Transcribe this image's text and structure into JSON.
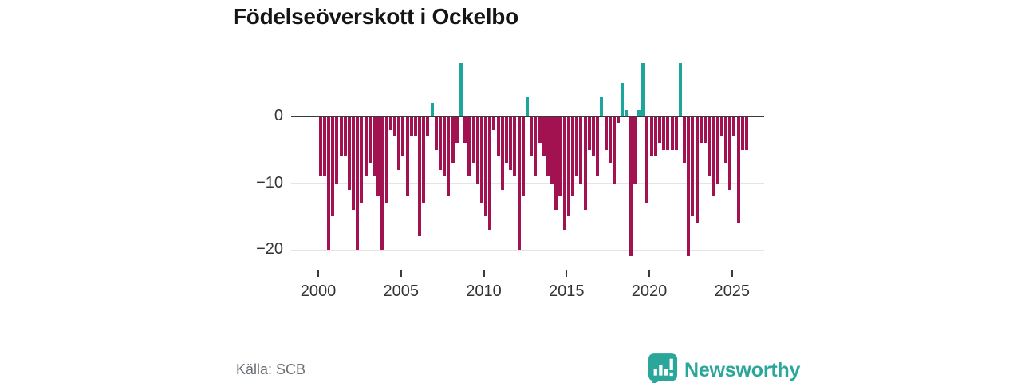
{
  "title": "Födelseöverskott i Ockelbo",
  "source": "Källa: SCB",
  "brand": {
    "name": "Newsworthy",
    "color": "#2aa69b",
    "logo_icon": "speech-bubble-bar-chart"
  },
  "colors": {
    "negative_bar": "#a21250",
    "positive_bar": "#1ba59c",
    "axis_line": "#3a3a3a",
    "gridline": "#e4e4e4",
    "tick_label": "#333333",
    "title_text": "#151515",
    "source_text": "#6b6f76",
    "background": "#ffffff"
  },
  "chart_data": {
    "type": "bar",
    "title": "Födelseöverskott i Ockelbo",
    "xlabel": "",
    "ylabel": "",
    "frequency": "quarterly",
    "start_period": "2000Q1",
    "end_period": "2025Q4",
    "x_tick_labels": [
      "2000",
      "2005",
      "2010",
      "2015",
      "2020",
      "2025"
    ],
    "y_tick_labels": [
      "0",
      "−10",
      "−20"
    ],
    "y_ticks": [
      0,
      -10,
      -20
    ],
    "ylim": [
      -22.5,
      9
    ],
    "grid": "horizontal",
    "legend": "none",
    "series": [
      {
        "name": "Födelseöverskott",
        "values": [
          -9,
          -9,
          -20,
          -15,
          -10,
          -6,
          -6,
          -11,
          -14,
          -20,
          -13,
          -9,
          -7,
          -9,
          -12,
          -20,
          -13,
          -2,
          -3,
          -8,
          -6,
          -12,
          -3,
          -3,
          -18,
          -13,
          -3,
          2,
          -5,
          -8,
          -9,
          -12,
          -7,
          -4,
          8,
          -4,
          -9,
          -7,
          -10,
          -13,
          -15,
          -17,
          -2,
          -6,
          -11,
          -7,
          -8,
          -9,
          -20,
          -12,
          3,
          -6,
          -9,
          -4,
          -6,
          -9,
          -10,
          -14,
          -12,
          -17,
          -15,
          -12,
          -9,
          -10,
          -14,
          -5,
          -6,
          -9,
          3,
          -5,
          -7,
          -10,
          -1,
          5,
          1,
          -21,
          -10,
          1,
          8,
          -13,
          -6,
          -6,
          -4,
          -5,
          -5,
          -5,
          -5,
          8,
          -7,
          -21,
          -15,
          -16,
          -4,
          -4,
          -9,
          -12,
          -10,
          -3,
          -7,
          -11,
          -3,
          -16,
          -5,
          -5
        ]
      }
    ]
  }
}
